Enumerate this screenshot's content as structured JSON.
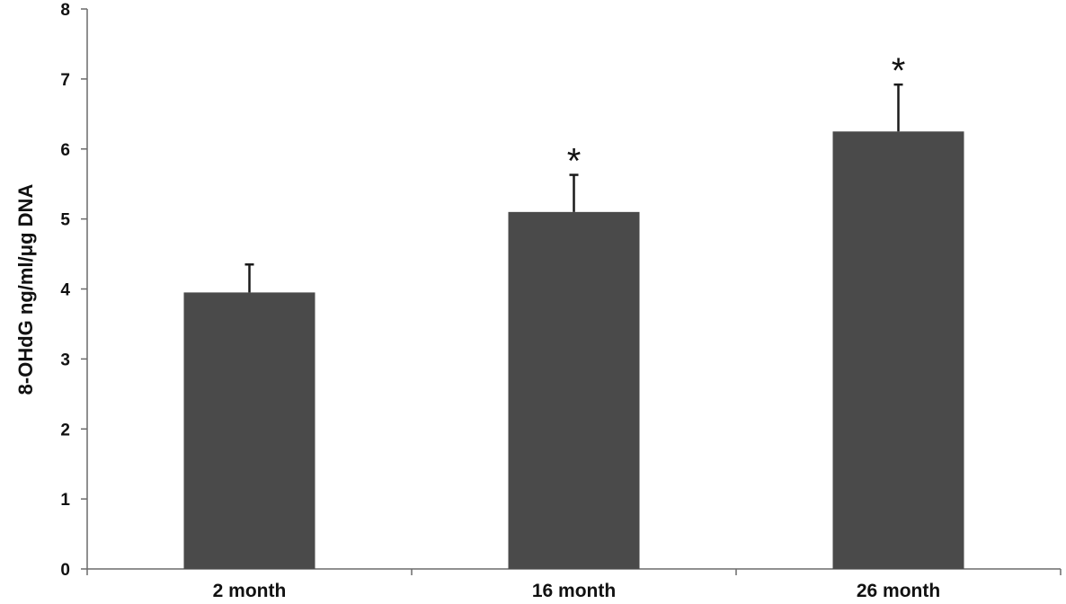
{
  "colors": {
    "bar": "#4a4a4a",
    "axis": "#6b6b6b",
    "error_bar": "#1a1a1a",
    "text": "#111111"
  },
  "chart_data": {
    "type": "bar",
    "title": "",
    "xlabel": "",
    "ylabel": "8-OHdG ng/ml/μg DNA",
    "ylim": [
      0,
      8
    ],
    "yticks": [
      "0",
      "1",
      "2",
      "3",
      "4",
      "5",
      "6",
      "7",
      "8"
    ],
    "grid": false,
    "categories": [
      "2 month",
      "16 month",
      "26 month"
    ],
    "values": [
      3.95,
      5.1,
      6.25
    ],
    "error_upper": [
      0.4,
      0.53,
      0.67
    ],
    "annotations": [
      "",
      "*",
      "*"
    ]
  }
}
